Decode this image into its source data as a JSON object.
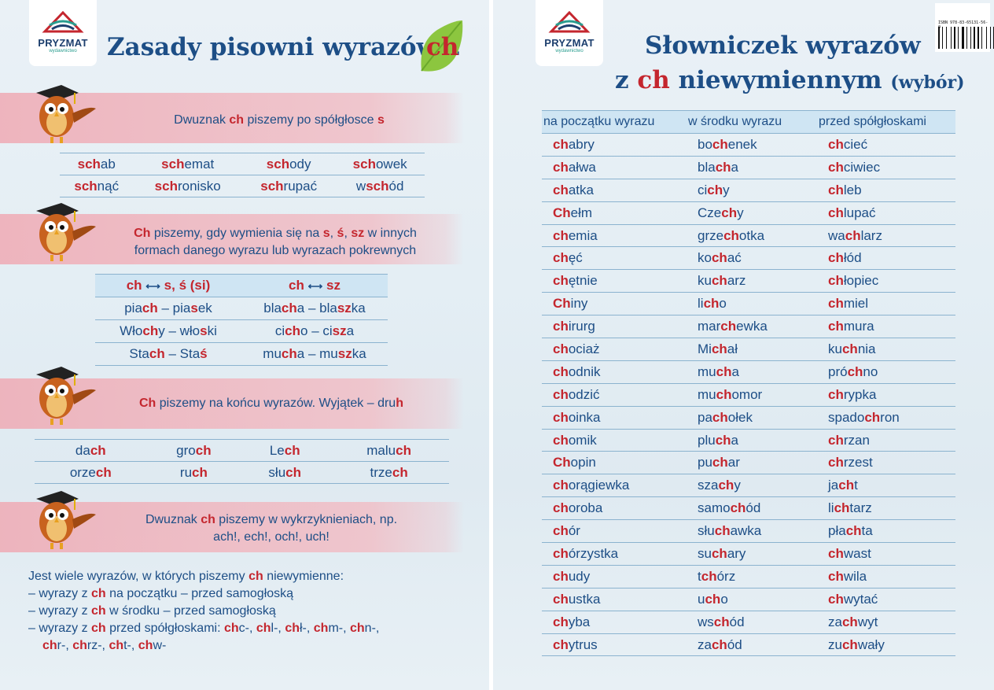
{
  "brand": {
    "name": "PRYZMAT",
    "sub": "wydawnictwo"
  },
  "left": {
    "title_prefix": "Zasady pisowni wyrazów z",
    "title_ch": "ch",
    "rule1": {
      "pre": "Dwuznak ",
      "ch": "ch",
      "mid": " piszemy po spółgłosce ",
      "s": "s"
    },
    "words_s": [
      [
        "sch",
        "ab",
        "",
        "sch",
        "emat",
        "",
        "sch",
        "ody",
        "",
        "sch",
        "owek",
        ""
      ],
      [
        "sch",
        "nąć",
        "",
        "sch",
        "ronisko",
        "",
        "sch",
        "rupać",
        "",
        "w",
        "sch",
        "ód"
      ]
    ],
    "rule2": {
      "ch": "Ch",
      "t1": " piszemy, gdy wymienia się na ",
      "s": "s",
      "c1": ", ",
      "s2": "ś",
      "c2": ", ",
      "sz": "sz",
      "t2": " w innych",
      "line2": "formach danego wyrazu lub wyrazach pokrewnych"
    },
    "pairs_head": [
      "ch",
      "s, ś (si)",
      "ch",
      "sz"
    ],
    "pairs": [
      [
        [
          "pia",
          "ch",
          " – pia",
          "s",
          "ek"
        ],
        [
          "bla",
          "ch",
          "a – bla",
          "sz",
          "ka"
        ]
      ],
      [
        [
          "Wło",
          "ch",
          "y – wło",
          "s",
          "ki"
        ],
        [
          "ci",
          "ch",
          "o – ci",
          "sz",
          "a"
        ]
      ],
      [
        [
          "Sta",
          "ch",
          " – Sta",
          "ś",
          ""
        ],
        [
          "mu",
          "ch",
          "a – mu",
          "sz",
          "ka"
        ]
      ]
    ],
    "rule3": {
      "ch": "Ch",
      "t1": " piszemy na końcu wyrazów. Wyjątek – dru",
      "h": "h"
    },
    "words_end": [
      [
        "da",
        "ch",
        "gro",
        "ch",
        "Le",
        "ch",
        "malu",
        "ch"
      ],
      [
        "orze",
        "ch",
        "ru",
        "ch",
        "słu",
        "ch",
        "trze",
        "ch"
      ]
    ],
    "rule4": {
      "pre": "Dwuznak ",
      "ch": "ch",
      "post": " piszemy w wykrzyknieniach, np.",
      "line2": "ach!, ech!, och!, uch!"
    },
    "notes": {
      "intro_pre": "Jest wiele wyrazów, w których piszemy ",
      "intro_ch": "ch",
      "intro_post": " niewymienne:",
      "n1_pre": "–  wyrazy z ",
      "n1_post": " na początku – przed samogłoską",
      "n2_pre": "–  wyrazy z ",
      "n2_post": " w środku – przed samogłoską",
      "n3_pre": "–  wyrazy z ",
      "n3_post": " przed spółgłoskami: ",
      "n3_list": [
        [
          "ch",
          "c-, "
        ],
        [
          "ch",
          "l-, "
        ],
        [
          "ch",
          "ł-, "
        ],
        [
          "ch",
          "m-, "
        ],
        [
          "ch",
          "n-,"
        ]
      ],
      "n4_list": [
        [
          "ch",
          "r-, "
        ],
        [
          "ch",
          "rz-, "
        ],
        [
          "ch",
          "t-, "
        ],
        [
          "ch",
          "w-"
        ]
      ]
    }
  },
  "right": {
    "title_line1": "Słowniczek wyrazów",
    "title_z": "z ",
    "title_ch": "ch",
    "title_mid": " niewymiennym ",
    "title_small": "(wybór)",
    "barcode_text": "ISBN 978-83-65131-56-0",
    "columns": [
      "na początku wyrazu",
      "w środku wyrazu",
      "przed spółgłoskami"
    ],
    "rows": [
      [
        [
          "",
          "ch",
          "abry"
        ],
        [
          "bo",
          "ch",
          "enek"
        ],
        [
          "",
          "ch",
          "cieć"
        ]
      ],
      [
        [
          "",
          "ch",
          "ałwa"
        ],
        [
          "bla",
          "ch",
          "a"
        ],
        [
          "",
          "ch",
          "ciwiec"
        ]
      ],
      [
        [
          "",
          "ch",
          "atka"
        ],
        [
          "ci",
          "ch",
          "y"
        ],
        [
          "",
          "ch",
          "leb"
        ]
      ],
      [
        [
          "",
          "Ch",
          "ełm"
        ],
        [
          "Cze",
          "ch",
          "y"
        ],
        [
          "",
          "ch",
          "lupać"
        ]
      ],
      [
        [
          "",
          "ch",
          "emia"
        ],
        [
          "grze",
          "ch",
          "otka"
        ],
        [
          "wa",
          "ch",
          "larz"
        ]
      ],
      [
        [
          "",
          "ch",
          "ęć"
        ],
        [
          "ko",
          "ch",
          "ać"
        ],
        [
          "",
          "ch",
          "łód"
        ]
      ],
      [
        [
          "",
          "ch",
          "ętnie"
        ],
        [
          "ku",
          "ch",
          "arz"
        ],
        [
          "",
          "ch",
          "łopiec"
        ]
      ],
      [
        [
          "",
          "Ch",
          "iny"
        ],
        [
          "li",
          "ch",
          "o"
        ],
        [
          "",
          "ch",
          "miel"
        ]
      ],
      [
        [
          "",
          "ch",
          "irurg"
        ],
        [
          "mar",
          "ch",
          "ewka"
        ],
        [
          "",
          "ch",
          "mura"
        ]
      ],
      [
        [
          "",
          "ch",
          "ociaż"
        ],
        [
          "Mi",
          "ch",
          "ał"
        ],
        [
          "ku",
          "ch",
          "nia"
        ]
      ],
      [
        [
          "",
          "ch",
          "odnik"
        ],
        [
          "mu",
          "ch",
          "a"
        ],
        [
          "pró",
          "ch",
          "no"
        ]
      ],
      [
        [
          "",
          "ch",
          "odzić"
        ],
        [
          "mu",
          "ch",
          "omor"
        ],
        [
          "",
          "ch",
          "rypka"
        ]
      ],
      [
        [
          "",
          "ch",
          "oinka"
        ],
        [
          "pa",
          "ch",
          "ołek"
        ],
        [
          "spado",
          "ch",
          "ron"
        ]
      ],
      [
        [
          "",
          "ch",
          "omik"
        ],
        [
          "plu",
          "ch",
          "a"
        ],
        [
          "",
          "ch",
          "rzan"
        ]
      ],
      [
        [
          "",
          "Ch",
          "opin"
        ],
        [
          "pu",
          "ch",
          "ar"
        ],
        [
          "",
          "ch",
          "rzest"
        ]
      ],
      [
        [
          "",
          "ch",
          "orągiewka"
        ],
        [
          "sza",
          "ch",
          "y"
        ],
        [
          "ja",
          "ch",
          "t"
        ]
      ],
      [
        [
          "",
          "ch",
          "oroba"
        ],
        [
          "samo",
          "ch",
          "ód"
        ],
        [
          "li",
          "ch",
          "tarz"
        ]
      ],
      [
        [
          "",
          "ch",
          "ór"
        ],
        [
          "słu",
          "ch",
          "awka"
        ],
        [
          "pła",
          "ch",
          "ta"
        ]
      ],
      [
        [
          "",
          "ch",
          "órzystka"
        ],
        [
          "su",
          "ch",
          "ary"
        ],
        [
          "",
          "ch",
          "wast"
        ]
      ],
      [
        [
          "",
          "ch",
          "udy"
        ],
        [
          "t",
          "ch",
          "órz"
        ],
        [
          "",
          "ch",
          "wila"
        ]
      ],
      [
        [
          "",
          "ch",
          "ustka"
        ],
        [
          "u",
          "ch",
          "o"
        ],
        [
          "",
          "ch",
          "wytać"
        ]
      ],
      [
        [
          "",
          "ch",
          "yba"
        ],
        [
          "ws",
          "ch",
          "ód"
        ],
        [
          "za",
          "ch",
          "wyt"
        ]
      ],
      [
        [
          "",
          "ch",
          "ytrus"
        ],
        [
          "za",
          "ch",
          "ód"
        ],
        [
          "zu",
          "ch",
          "wały"
        ]
      ]
    ]
  }
}
